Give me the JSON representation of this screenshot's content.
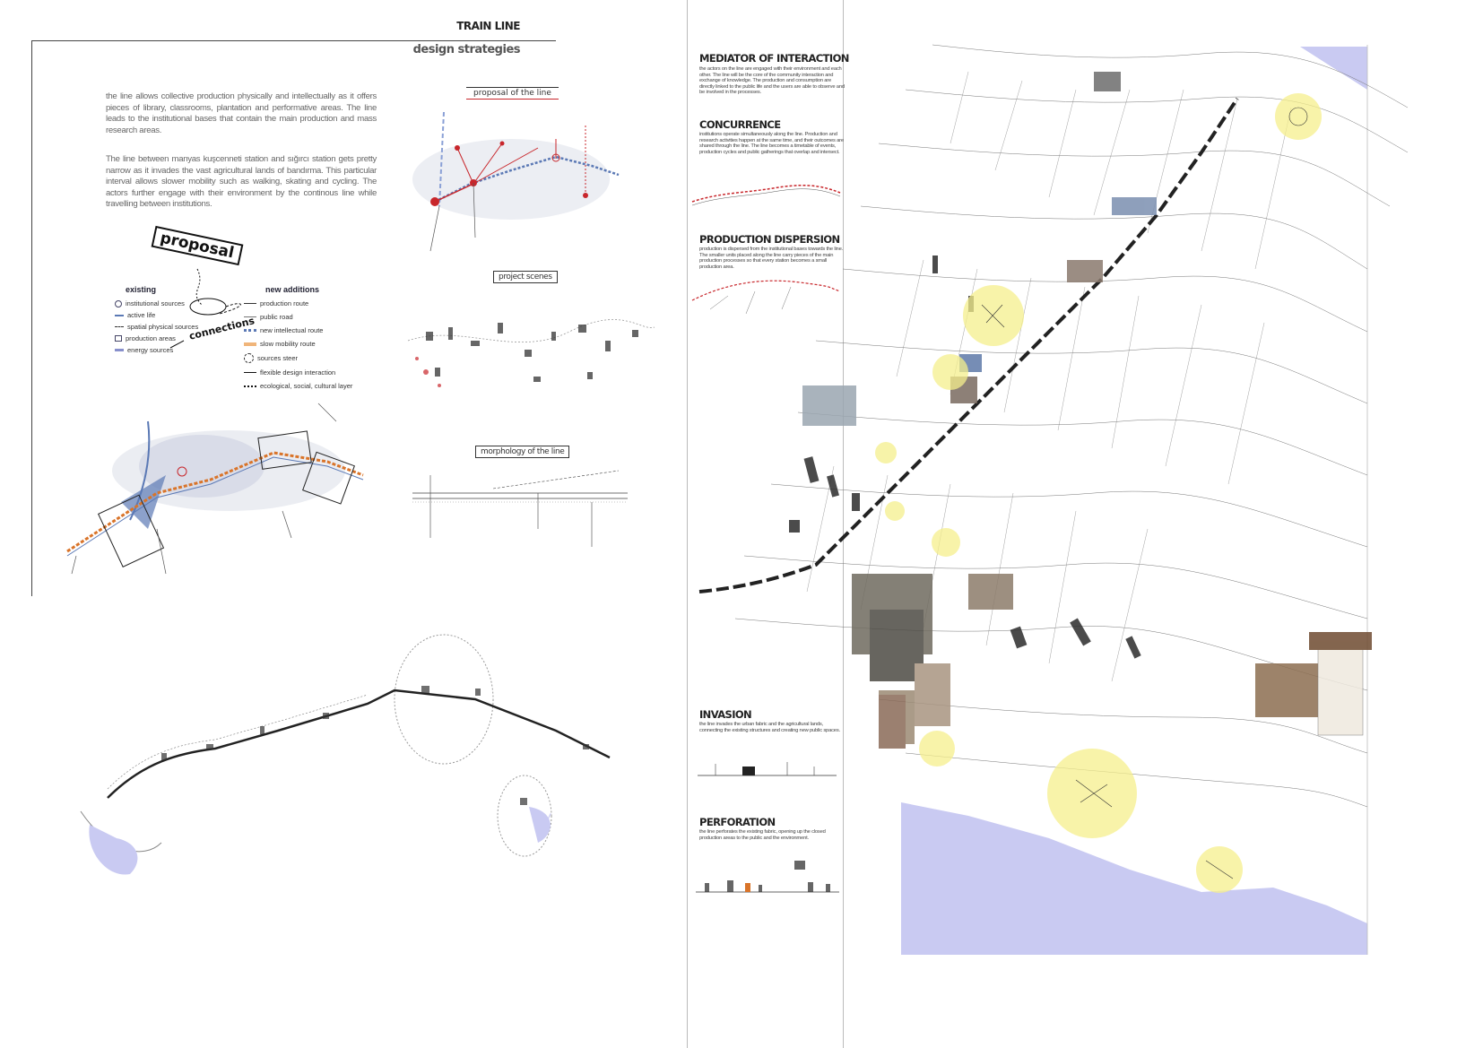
{
  "header": {
    "title": "TRAIN LINE",
    "subtitle": "design strategies"
  },
  "intro": {
    "paragraph_1": "the line allows collective production physically and intellectually as it offers pieces of library, classrooms, plantation and performative areas. The line leads to the institutional bases that contain the main production and mass research areas.",
    "paragraph_2": "The line between manyas kuşcenneti station and sığırcı station gets pretty narrow as it invades the vast agricultural lands of bandırma. This particular interval allows slower mobility such as walking, skating and cycling. The actors further engage with their environment by the continous line while travelling between institutions."
  },
  "proposal_diagram": {
    "proposal_label": "proposal",
    "connections_label": "connections",
    "existing_head": "existing",
    "new_head": "new additions",
    "existing_items": [
      "institutional sources",
      "active life",
      "spatial physical sources",
      "production areas",
      "energy sources"
    ],
    "new_items": [
      "production route",
      "public road",
      "new intellectual route",
      "slow mobility route",
      "sources steer",
      "flexible design interaction",
      "ecological, social, cultural layer"
    ]
  },
  "panels": {
    "proposal_of_line": "proposal of the line",
    "project_scenes": "project scenes",
    "morphology_of_line": "morphology of the line"
  },
  "strategies": [
    {
      "title": "MEDIATOR OF INTERACTION",
      "text": "the actors on the line are engaged with their environment and each other. The line will be the core of the community interaction and exchange of knowledge. The production and consumption are directly linked to the public life and the users are able to observe and be involved in the processes."
    },
    {
      "title": "CONCURRENCE",
      "text": "institutions operate simultaneously along the line. Production and research activities happen at the same time, and their outcomes are shared through the line. The line becomes a timetable of events, production cycles and public gatherings that overlap and intersect."
    },
    {
      "title": "PRODUCTION DISPERSION",
      "text": "production is dispersed from the institutional bases towards the line. The smaller units placed along the line carry pieces of the main production processes so that every station becomes a small production area."
    },
    {
      "title": "INVASION",
      "text": "the line invades the urban fabric and the agricultural lands, connecting the existing structures and creating new public spaces."
    },
    {
      "title": "PERFORATION",
      "text": "the line perforates the existing fabric, opening up the closed production areas to the public and the environment."
    }
  ],
  "colors": {
    "accent_red": "#c8262b",
    "sea": "#c9caf2",
    "highlight": "#f5ef8c",
    "route_orange": "#d9742a",
    "route_blue": "#5b79b5"
  }
}
